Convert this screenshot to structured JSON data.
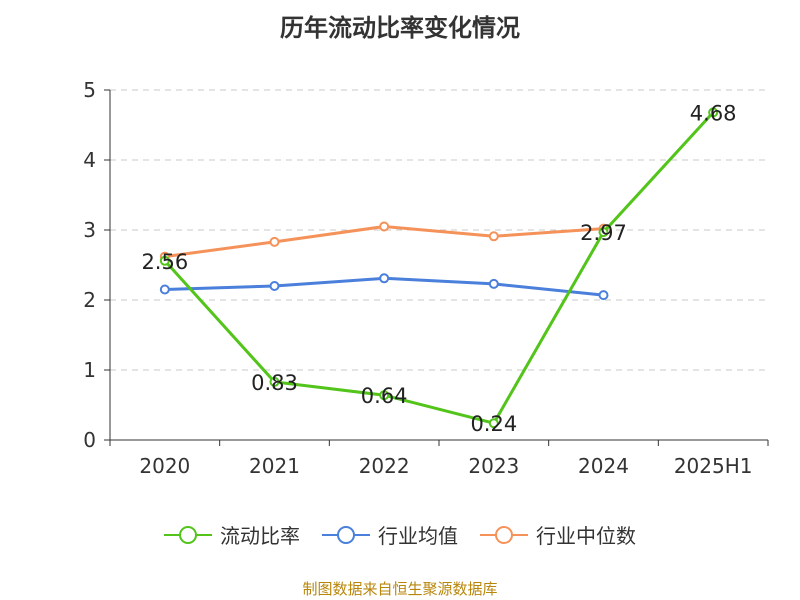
{
  "chart_data": {
    "type": "line",
    "title": "历年流动比率变化情况",
    "categories": [
      "2020",
      "2021",
      "2022",
      "2023",
      "2024",
      "2025H1"
    ],
    "ylim": [
      0,
      5
    ],
    "yticks": [
      "0",
      "1",
      "2",
      "3",
      "4",
      "5"
    ],
    "grid": true,
    "legend_position": "bottom",
    "series": [
      {
        "name": "流动比率",
        "color": "#52c41a",
        "values": [
          2.56,
          0.83,
          0.64,
          0.24,
          2.97,
          4.68
        ],
        "labels": [
          "2.56",
          "0.83",
          "0.64",
          "0.24",
          "2.97",
          "4.68"
        ]
      },
      {
        "name": "行业均值",
        "color": "#4a7fdb",
        "values": [
          2.15,
          2.2,
          2.31,
          2.23,
          2.07,
          null
        ]
      },
      {
        "name": "行业中位数",
        "color": "#f5925a",
        "values": [
          2.62,
          2.83,
          3.05,
          2.91,
          3.02,
          null
        ]
      }
    ]
  },
  "source": "制图数据来自恒生聚源数据库"
}
